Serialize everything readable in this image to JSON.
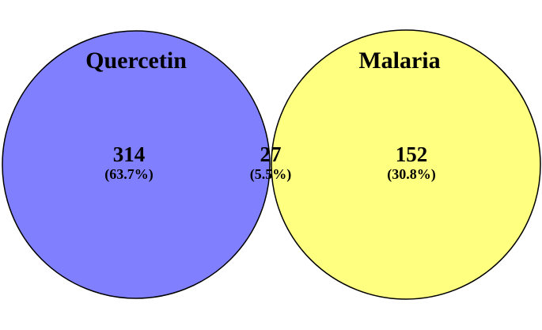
{
  "venn": {
    "sets": [
      {
        "id": "left",
        "title": "Quercetin",
        "color": "#8080ff",
        "exclusive_count": "314",
        "exclusive_percent": "(63.7%)"
      },
      {
        "id": "right",
        "title": "Malaria",
        "color": "#ffff80",
        "exclusive_count": "152",
        "exclusive_percent": "(30.8%)"
      }
    ],
    "intersection": {
      "count": "27",
      "percent": "(5.5%)",
      "color": "#b4b47a"
    },
    "outline_color": "#000000"
  }
}
